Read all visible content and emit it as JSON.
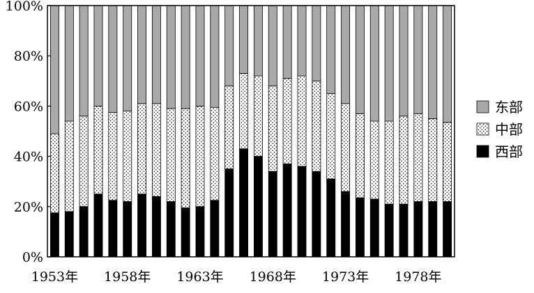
{
  "chart_data": {
    "type": "bar",
    "stacked": true,
    "title": "",
    "xlabel": "",
    "ylabel": "",
    "ylim": [
      0,
      100
    ],
    "y_ticks": [
      "0%",
      "20%",
      "40%",
      "60%",
      "80%",
      "100%"
    ],
    "categories": [
      "1953年",
      "1954年",
      "1955年",
      "1956年",
      "1957年",
      "1958年",
      "1959年",
      "1960年",
      "1961年",
      "1962年",
      "1963年",
      "1964年",
      "1965年",
      "1966年",
      "1967年",
      "1968年",
      "1969年",
      "1970年",
      "1971年",
      "1972年",
      "1973年",
      "1974年",
      "1975年",
      "1976年",
      "1977年",
      "1978年",
      "1979年",
      "1980年"
    ],
    "x_tick_labels_shown": [
      "1953年",
      "1958年",
      "1963年",
      "1968年",
      "1973年",
      "1978年"
    ],
    "series": [
      {
        "name": "西部",
        "color": "#000000",
        "pattern": "solid",
        "values": [
          17.5,
          18,
          20,
          25,
          22.5,
          22,
          25,
          24,
          22,
          19.5,
          20,
          22.5,
          35,
          43,
          40,
          34,
          37,
          36,
          34,
          31,
          26,
          23.5,
          23,
          21,
          21,
          22,
          22,
          22
        ]
      },
      {
        "name": "中部",
        "color": "#ffffff",
        "pattern": "dots",
        "values": [
          31.5,
          36,
          36,
          35,
          35,
          36,
          36,
          37,
          37,
          39.5,
          40,
          37,
          33,
          30,
          32,
          34,
          34,
          36,
          36,
          34,
          35,
          33.5,
          31,
          33,
          35,
          35,
          33,
          31.5
        ]
      },
      {
        "name": "东部",
        "color": "#a9a9a9",
        "pattern": "solid",
        "values": [
          51,
          46,
          44,
          40,
          42.5,
          42,
          39,
          39,
          41,
          41,
          40,
          40.5,
          32,
          27,
          28,
          32,
          29,
          28,
          30,
          35,
          39,
          43,
          46,
          46,
          44,
          43,
          45,
          46.5
        ]
      }
    ],
    "legend": {
      "placement": "right",
      "order": [
        "东部",
        "中部",
        "西部"
      ]
    },
    "grid": false
  }
}
